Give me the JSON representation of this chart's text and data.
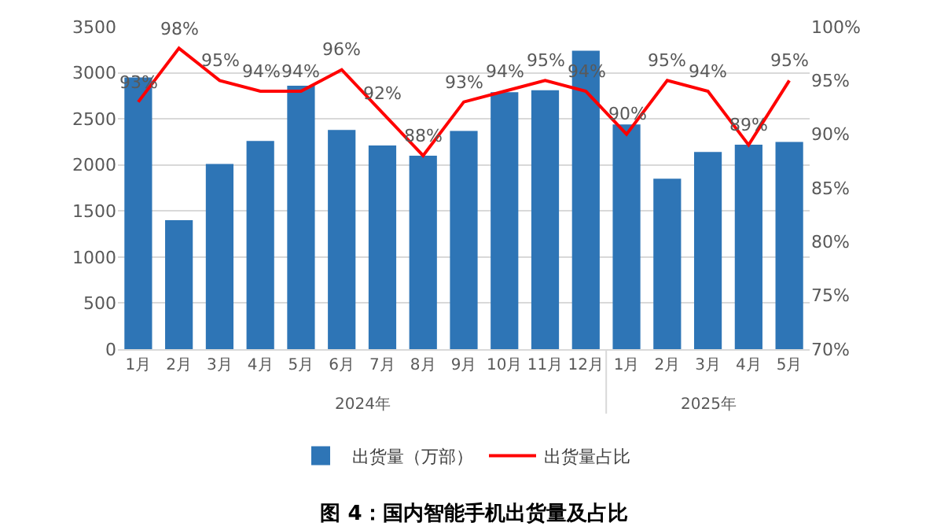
{
  "chart_data": {
    "type": "bar",
    "title": "图 4：国内智能手机出货量及占比",
    "categories": [
      "1月",
      "2月",
      "3月",
      "4月",
      "5月",
      "6月",
      "7月",
      "8月",
      "9月",
      "10月",
      "11月",
      "12月",
      "1月",
      "2月",
      "3月",
      "4月",
      "5月"
    ],
    "series": [
      {
        "name": "出货量（万部）",
        "color": "#2e75b6",
        "values": [
          2950,
          1400,
          2010,
          2260,
          2860,
          2380,
          2210,
          2100,
          2370,
          2790,
          2810,
          3240,
          2440,
          1850,
          2140,
          2220,
          2250
        ]
      },
      {
        "name": "出货量占比",
        "type": "line",
        "axis": "y2",
        "color": "#ff0000",
        "values": [
          93,
          98,
          95,
          94,
          94,
          96,
          92,
          88,
          93,
          94,
          95,
          94,
          90,
          95,
          94,
          89,
          95
        ],
        "value_labels": [
          "93%",
          "98%",
          "95%",
          "94%",
          "94%",
          "96%",
          "92%",
          "88%",
          "93%",
          "94%",
          "95%",
          "94%",
          "90%",
          "95%",
          "94%",
          "89%",
          "95%"
        ]
      }
    ],
    "ylim": [
      0,
      3500
    ],
    "yticks": [
      0,
      500,
      1000,
      1500,
      2000,
      2500,
      3000,
      3500
    ],
    "y2lim": [
      70,
      100
    ],
    "y2ticks": [
      {
        "value": 70,
        "label": "70%"
      },
      {
        "value": 75,
        "label": "75%"
      },
      {
        "value": 80,
        "label": "80%"
      },
      {
        "value": 85,
        "label": "85%"
      },
      {
        "value": 90,
        "label": "90%"
      },
      {
        "value": 95,
        "label": "95%"
      },
      {
        "value": 100,
        "label": "100%"
      }
    ],
    "annotations": [
      "2024年",
      "2025年"
    ],
    "grid": "y",
    "legend": "bottom",
    "marker": "none",
    "line_style": "solid"
  }
}
